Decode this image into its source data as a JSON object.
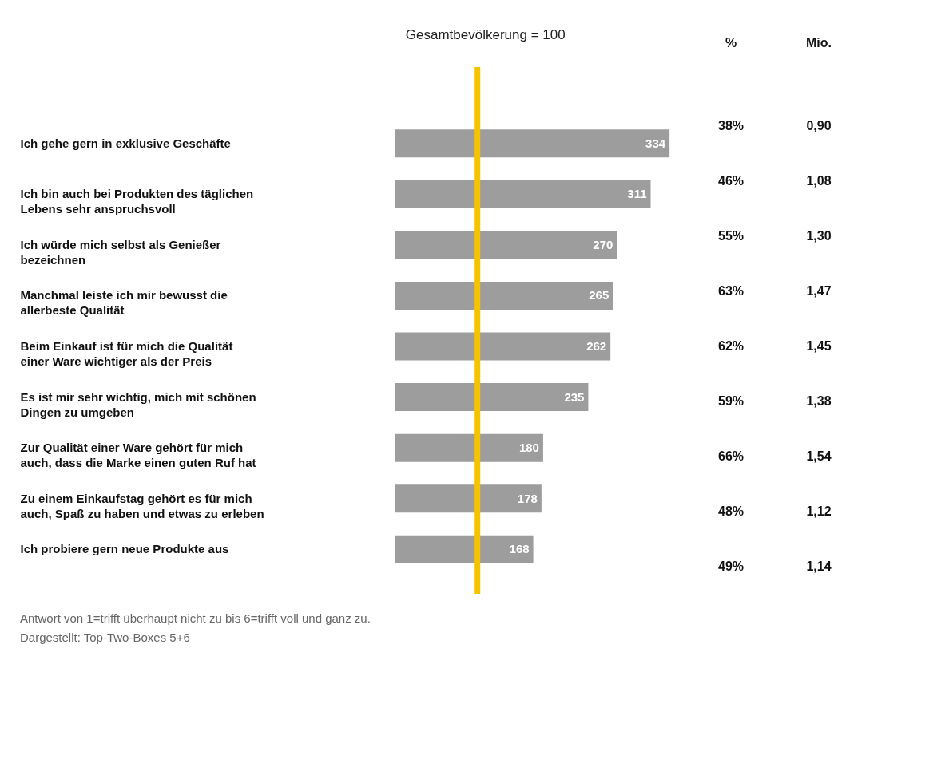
{
  "chart_data": [
    {
      "type": "bar",
      "orientation": "horizontal",
      "tick_labels": "y",
      "data_labels": true,
      "color": "#9d9d9d",
      "categories": [
        "Ich gehe gern in exklusive Geschäfte",
        "Ich bin auch bei Produkten des täglichen Lebens sehr anspruchsvoll",
        "Ich würde mich selbst als Genießer bezeichnen",
        "Manchmal leiste ich mir bewusst die allerbeste Qualität",
        "Beim Einkauf ist für mich die Qualität einer Ware wichtiger als der Preis",
        "Es ist mir sehr wichtig, mich mit schönen Dingen zu umgeben",
        "Zur Qualität einer Ware gehört für mich auch, dass die Marke einen guten Ruf hat",
        "Zu einem Einkaufstag gehört es für mich auch, Spaß zu haben und etwas zu erleben",
        "Ich probiere gern neue Produkte aus"
      ],
      "values": [
        334,
        311,
        270,
        265,
        262,
        235,
        180,
        178,
        168
      ],
      "ref_lines": [
        {
          "axis": "x",
          "value": 100,
          "label": "Gesamtbevölkerung = 100",
          "color": "#f5c400"
        }
      ],
      "annotations": [
        "Antwort von 1=trifft überhaupt nicht zu bis 6=trifft voll und ganz zu.",
        "Dargestellt: Top-Two-Boxes 5+6"
      ]
    },
    {
      "type": "other",
      "title": "%",
      "annotations": [
        "38%",
        "46%",
        "55%",
        "63%",
        "62%",
        "59%",
        "66%",
        "48%",
        "49%"
      ]
    },
    {
      "type": "other",
      "title": "Mio.",
      "annotations": [
        "0,90",
        "1,08",
        "1,30",
        "1,47",
        "1,45",
        "1,38",
        "1,54",
        "1,12",
        "1,14"
      ]
    }
  ]
}
